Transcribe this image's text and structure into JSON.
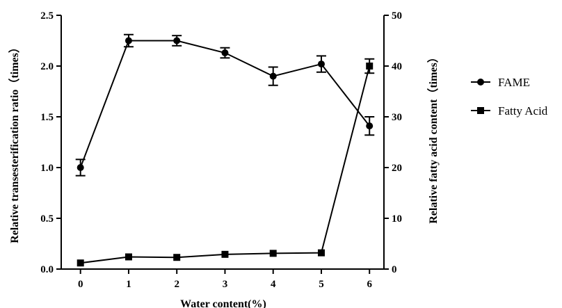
{
  "chart_data": {
    "type": "line",
    "x": [
      0,
      1,
      2,
      3,
      4,
      5,
      6
    ],
    "xlabel": "Water content(%)",
    "xlim": [
      -0.4,
      6.3
    ],
    "xticks": [
      "0",
      "1",
      "2",
      "3",
      "4",
      "5",
      "6"
    ],
    "ylabel": "Relative transesterification ratio（times）",
    "ylim": [
      0,
      2.5
    ],
    "yticks": [
      "0.0",
      "0.5",
      "1.0",
      "1.5",
      "2.0",
      "2.5"
    ],
    "y2label": "Relative fatty acid content（times）",
    "y2lim": [
      0,
      50
    ],
    "y2ticks": [
      "0",
      "10",
      "20",
      "30",
      "40",
      "50"
    ],
    "grid": false,
    "legend_position": "right",
    "series": [
      {
        "name": "FAME",
        "axis": "left",
        "marker": "circle",
        "values": [
          1.0,
          2.25,
          2.25,
          2.13,
          1.9,
          2.02,
          1.41
        ],
        "errors": [
          0.08,
          0.06,
          0.05,
          0.05,
          0.09,
          0.08,
          0.09
        ]
      },
      {
        "name": "Fatty Acid",
        "axis": "right",
        "marker": "square",
        "values": [
          1.2,
          2.4,
          2.3,
          2.9,
          3.1,
          3.2,
          40.0
        ],
        "errors": [
          0,
          0,
          0,
          0,
          0,
          0,
          1.4
        ]
      }
    ],
    "colors": {
      "line": "#000000",
      "background": "#ffffff"
    }
  }
}
